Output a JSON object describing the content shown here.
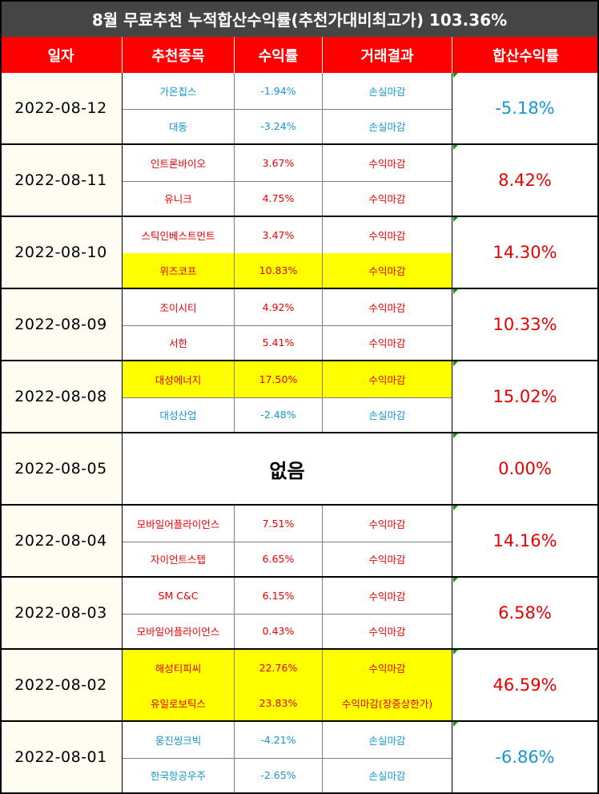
{
  "title": "8월 무료추천 누적합산수익률(추천가대비최고가) 103.36%",
  "headers": [
    "일자",
    "추천종목",
    "수익률",
    "거래결과",
    "합산수익률"
  ],
  "colors": {
    "header_bg": "#ff0000",
    "title_bg": "#454545",
    "positive": "#e60000",
    "negative": "#1597d1",
    "highlight": "#ffff00"
  },
  "groups": [
    {
      "date": "2022-08-12",
      "total": "-5.18%",
      "total_sign": "neg",
      "rows": [
        {
          "name": "가온칩스",
          "ret": "-1.94%",
          "result": "손실마감",
          "sign": "neg",
          "highlight": false
        },
        {
          "name": "대동",
          "ret": "-3.24%",
          "result": "손실마감",
          "sign": "neg",
          "highlight": false
        }
      ]
    },
    {
      "date": "2022-08-11",
      "total": "8.42%",
      "total_sign": "pos",
      "rows": [
        {
          "name": "인트론바이오",
          "ret": "3.67%",
          "result": "수익마감",
          "sign": "pos",
          "highlight": false
        },
        {
          "name": "유니크",
          "ret": "4.75%",
          "result": "수익마감",
          "sign": "pos",
          "highlight": false
        }
      ]
    },
    {
      "date": "2022-08-10",
      "total": "14.30%",
      "total_sign": "pos",
      "rows": [
        {
          "name": "스틱인베스트먼트",
          "ret": "3.47%",
          "result": "수익마감",
          "sign": "pos",
          "highlight": false
        },
        {
          "name": "위즈코프",
          "ret": "10.83%",
          "result": "수익마감",
          "sign": "pos",
          "highlight": true
        }
      ]
    },
    {
      "date": "2022-08-09",
      "total": "10.33%",
      "total_sign": "pos",
      "rows": [
        {
          "name": "조이시티",
          "ret": "4.92%",
          "result": "수익마감",
          "sign": "pos",
          "highlight": false
        },
        {
          "name": "서한",
          "ret": "5.41%",
          "result": "수익마감",
          "sign": "pos",
          "highlight": false
        }
      ]
    },
    {
      "date": "2022-08-08",
      "total": "15.02%",
      "total_sign": "pos",
      "rows": [
        {
          "name": "대성에너지",
          "ret": "17.50%",
          "result": "수익마감",
          "sign": "pos",
          "highlight": true
        },
        {
          "name": "대성산업",
          "ret": "-2.48%",
          "result": "손실마감",
          "sign": "neg",
          "highlight": false
        }
      ]
    },
    {
      "date": "2022-08-05",
      "total": "0.00%",
      "total_sign": "pos",
      "none": "없음",
      "rows": []
    },
    {
      "date": "2022-08-04",
      "total": "14.16%",
      "total_sign": "pos",
      "rows": [
        {
          "name": "모바일어플라이언스",
          "ret": "7.51%",
          "result": "수익마감",
          "sign": "pos",
          "highlight": false
        },
        {
          "name": "자이언트스텝",
          "ret": "6.65%",
          "result": "수익마감",
          "sign": "pos",
          "highlight": false
        }
      ]
    },
    {
      "date": "2022-08-03",
      "total": "6.58%",
      "total_sign": "pos",
      "rows": [
        {
          "name": "SM C&C",
          "ret": "6.15%",
          "result": "수익마감",
          "sign": "pos",
          "highlight": false
        },
        {
          "name": "모바일어플라이언스",
          "ret": "0.43%",
          "result": "수익마감",
          "sign": "pos",
          "highlight": false
        }
      ]
    },
    {
      "date": "2022-08-02",
      "total": "46.59%",
      "total_sign": "pos",
      "rows": [
        {
          "name": "해성티피씨",
          "ret": "22.76%",
          "result": "수익마감",
          "sign": "pos",
          "highlight": true
        },
        {
          "name": "유일로보틱스",
          "ret": "23.83%",
          "result": "수익마감(장중상한가)",
          "sign": "pos",
          "highlight": true
        }
      ]
    },
    {
      "date": "2022-08-01",
      "total": "-6.86%",
      "total_sign": "neg",
      "rows": [
        {
          "name": "웅진씽크빅",
          "ret": "-4.21%",
          "result": "손실마감",
          "sign": "neg",
          "highlight": false
        },
        {
          "name": "한국항공우주",
          "ret": "-2.65%",
          "result": "손실마감",
          "sign": "neg",
          "highlight": false
        }
      ]
    }
  ]
}
